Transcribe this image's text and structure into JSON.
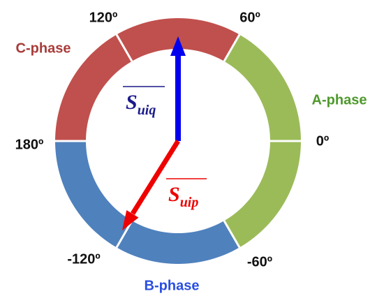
{
  "angles": {
    "a120": "120º",
    "a60": "60º",
    "a180": "180º",
    "a0": "0º",
    "am120": "-120º",
    "am60": "-60º"
  },
  "phases": {
    "a": "A-phase",
    "b": "B-phase",
    "c": "C-phase"
  },
  "vectors": [
    {
      "symbol": "S",
      "subscript": "uiq"
    },
    {
      "symbol": "S",
      "subscript": "uip"
    }
  ]
}
